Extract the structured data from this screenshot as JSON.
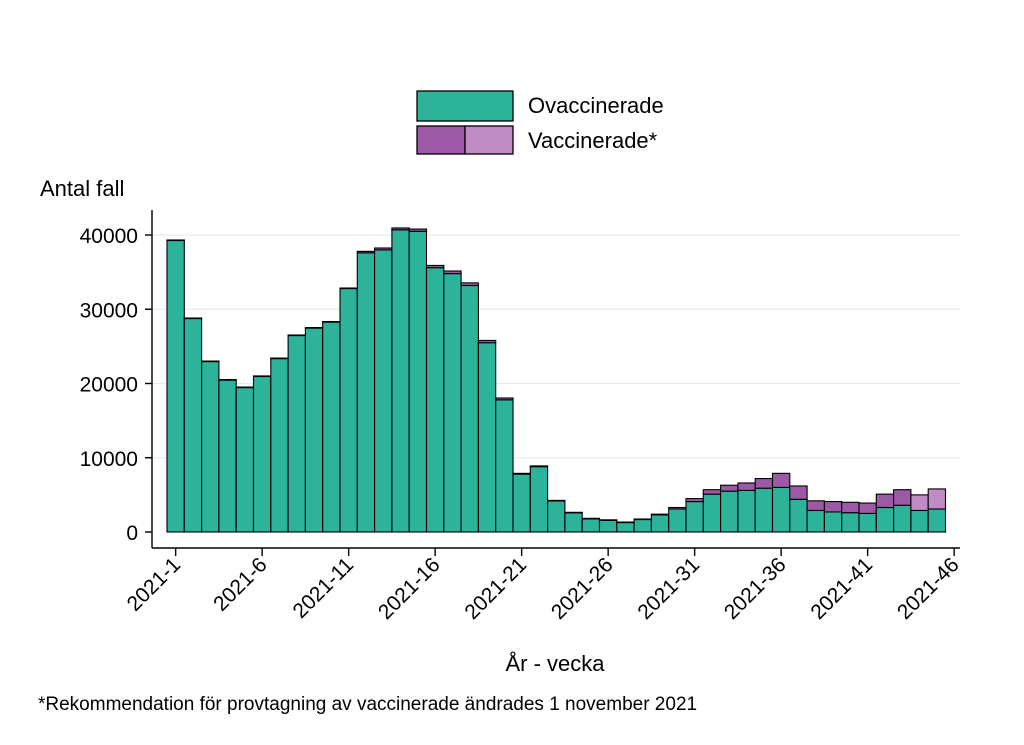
{
  "chart_data": {
    "type": "bar",
    "stacked": true,
    "ylabel": "Antal fall",
    "xlabel": "År - vecka",
    "ylim": [
      0,
      43000
    ],
    "yticks": [
      0,
      10000,
      20000,
      30000,
      40000
    ],
    "xtick_labels": [
      "2021-1",
      "2021-6",
      "2021-11",
      "2021-16",
      "2021-21",
      "2021-26",
      "2021-31",
      "2021-36",
      "2021-41",
      "2021-46"
    ],
    "categories": [
      "2021-1",
      "2021-2",
      "2021-3",
      "2021-4",
      "2021-5",
      "2021-6",
      "2021-7",
      "2021-8",
      "2021-9",
      "2021-10",
      "2021-11",
      "2021-12",
      "2021-13",
      "2021-14",
      "2021-15",
      "2021-16",
      "2021-17",
      "2021-18",
      "2021-19",
      "2021-20",
      "2021-21",
      "2021-22",
      "2021-23",
      "2021-24",
      "2021-25",
      "2021-26",
      "2021-27",
      "2021-28",
      "2021-29",
      "2021-30",
      "2021-31",
      "2021-32",
      "2021-33",
      "2021-34",
      "2021-35",
      "2021-36",
      "2021-37",
      "2021-38",
      "2021-39",
      "2021-40",
      "2021-41",
      "2021-42",
      "2021-43",
      "2021-44",
      "2021-45"
    ],
    "series": [
      {
        "name": "Ovaccinerade",
        "color": "#2db39a",
        "values": [
          39300,
          28800,
          23000,
          20500,
          19500,
          21000,
          23400,
          26500,
          27500,
          28300,
          32800,
          37600,
          38000,
          40700,
          40500,
          35600,
          34800,
          33200,
          25500,
          17800,
          7800,
          8800,
          4200,
          2600,
          1800,
          1600,
          1300,
          1700,
          2300,
          3100,
          4100,
          5100,
          5500,
          5600,
          5900,
          6000,
          4400,
          2900,
          2700,
          2600,
          2500,
          3300,
          3600,
          2900,
          3100
        ]
      },
      {
        "name": "Vaccinerade*",
        "color": "#9b59a6",
        "light_color": "#c08ac2",
        "light_from_index": 43,
        "values": [
          30,
          20,
          20,
          20,
          20,
          20,
          20,
          30,
          30,
          40,
          60,
          200,
          250,
          250,
          300,
          300,
          350,
          350,
          300,
          250,
          100,
          100,
          60,
          50,
          40,
          40,
          40,
          50,
          100,
          200,
          400,
          600,
          800,
          1000,
          1300,
          1900,
          1800,
          1300,
          1400,
          1400,
          1400,
          1800,
          2100,
          2100,
          2700
        ]
      }
    ],
    "footnote": "*Rekommendation för provtagning av vaccinerade ändrades 1 november 2021"
  }
}
